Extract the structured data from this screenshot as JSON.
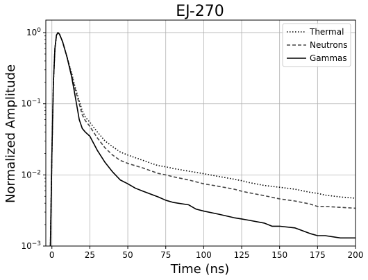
{
  "chart_data": {
    "type": "line",
    "title": "EJ-270",
    "xlabel": "Time (ns)",
    "ylabel": "Normalized Amplitude",
    "xlim": [
      -4,
      200
    ],
    "ylim": [
      0.001,
      1.5
    ],
    "yscale": "log",
    "grid": true,
    "legend_position": "top-right",
    "x_ticks": [
      0,
      25,
      50,
      75,
      100,
      125,
      150,
      175,
      200
    ],
    "y_ticks": [
      {
        "value": 0.001,
        "base": "10",
        "exp": "−3"
      },
      {
        "value": 0.01,
        "base": "10",
        "exp": "−2"
      },
      {
        "value": 0.1,
        "base": "10",
        "exp": "−1"
      },
      {
        "value": 1,
        "base": "10",
        "exp": "0"
      }
    ],
    "series": [
      {
        "name": "Thermal",
        "style": "dotted",
        "color": "#000000",
        "points": [
          [
            -1,
            0.001
          ],
          [
            0,
            0.02
          ],
          [
            1,
            0.2
          ],
          [
            2,
            0.6
          ],
          [
            3,
            0.92
          ],
          [
            4,
            1.0
          ],
          [
            5,
            0.95
          ],
          [
            7,
            0.75
          ],
          [
            10,
            0.45
          ],
          [
            13,
            0.27
          ],
          [
            15,
            0.18
          ],
          [
            18,
            0.11
          ],
          [
            20,
            0.08
          ],
          [
            22,
            0.065
          ],
          [
            25,
            0.055
          ],
          [
            30,
            0.04
          ],
          [
            35,
            0.03
          ],
          [
            40,
            0.025
          ],
          [
            45,
            0.021
          ],
          [
            50,
            0.019
          ],
          [
            60,
            0.016
          ],
          [
            70,
            0.0135
          ],
          [
            75,
            0.013
          ],
          [
            80,
            0.0123
          ],
          [
            90,
            0.0113
          ],
          [
            100,
            0.0104
          ],
          [
            110,
            0.0095
          ],
          [
            120,
            0.0087
          ],
          [
            125,
            0.0083
          ],
          [
            130,
            0.0078
          ],
          [
            140,
            0.0071
          ],
          [
            150,
            0.0067
          ],
          [
            160,
            0.0063
          ],
          [
            170,
            0.0057
          ],
          [
            175,
            0.0055
          ],
          [
            180,
            0.0052
          ],
          [
            190,
            0.0049
          ],
          [
            200,
            0.0047
          ]
        ]
      },
      {
        "name": "Neutrons",
        "style": "dashed",
        "color": "#444444",
        "points": [
          [
            -1,
            0.001
          ],
          [
            0,
            0.02
          ],
          [
            1,
            0.2
          ],
          [
            2,
            0.6
          ],
          [
            3,
            0.92
          ],
          [
            4,
            1.0
          ],
          [
            5,
            0.95
          ],
          [
            7,
            0.75
          ],
          [
            10,
            0.45
          ],
          [
            13,
            0.26
          ],
          [
            15,
            0.17
          ],
          [
            18,
            0.1
          ],
          [
            20,
            0.07
          ],
          [
            22,
            0.058
          ],
          [
            25,
            0.048
          ],
          [
            30,
            0.033
          ],
          [
            35,
            0.024
          ],
          [
            40,
            0.019
          ],
          [
            45,
            0.016
          ],
          [
            50,
            0.0145
          ],
          [
            60,
            0.0125
          ],
          [
            70,
            0.0105
          ],
          [
            75,
            0.01
          ],
          [
            80,
            0.0094
          ],
          [
            90,
            0.0085
          ],
          [
            100,
            0.0075
          ],
          [
            110,
            0.0069
          ],
          [
            120,
            0.0063
          ],
          [
            125,
            0.0059
          ],
          [
            130,
            0.0056
          ],
          [
            140,
            0.0051
          ],
          [
            150,
            0.0046
          ],
          [
            160,
            0.0043
          ],
          [
            170,
            0.0039
          ],
          [
            175,
            0.0036
          ],
          [
            180,
            0.0036
          ],
          [
            190,
            0.0035
          ],
          [
            200,
            0.0034
          ]
        ]
      },
      {
        "name": "Gammas",
        "style": "solid",
        "color": "#000000",
        "points": [
          [
            -1,
            0.001
          ],
          [
            0,
            0.02
          ],
          [
            1,
            0.2
          ],
          [
            2,
            0.6
          ],
          [
            3,
            0.92
          ],
          [
            4,
            1.0
          ],
          [
            5,
            0.95
          ],
          [
            7,
            0.75
          ],
          [
            10,
            0.45
          ],
          [
            13,
            0.24
          ],
          [
            15,
            0.14
          ],
          [
            17,
            0.08
          ],
          [
            18,
            0.06
          ],
          [
            20,
            0.045
          ],
          [
            22,
            0.04
          ],
          [
            25,
            0.035
          ],
          [
            30,
            0.022
          ],
          [
            35,
            0.015
          ],
          [
            40,
            0.011
          ],
          [
            45,
            0.0085
          ],
          [
            50,
            0.0075
          ],
          [
            55,
            0.0065
          ],
          [
            60,
            0.0059
          ],
          [
            70,
            0.0049
          ],
          [
            75,
            0.0044
          ],
          [
            80,
            0.0041
          ],
          [
            90,
            0.0038
          ],
          [
            95,
            0.0033
          ],
          [
            100,
            0.0031
          ],
          [
            110,
            0.0028
          ],
          [
            120,
            0.0025
          ],
          [
            125,
            0.0024
          ],
          [
            130,
            0.0023
          ],
          [
            140,
            0.0021
          ],
          [
            145,
            0.0019
          ],
          [
            150,
            0.0019
          ],
          [
            160,
            0.0018
          ],
          [
            170,
            0.0015
          ],
          [
            175,
            0.0014
          ],
          [
            180,
            0.0014
          ],
          [
            190,
            0.0013
          ],
          [
            200,
            0.0013
          ]
        ]
      }
    ]
  }
}
